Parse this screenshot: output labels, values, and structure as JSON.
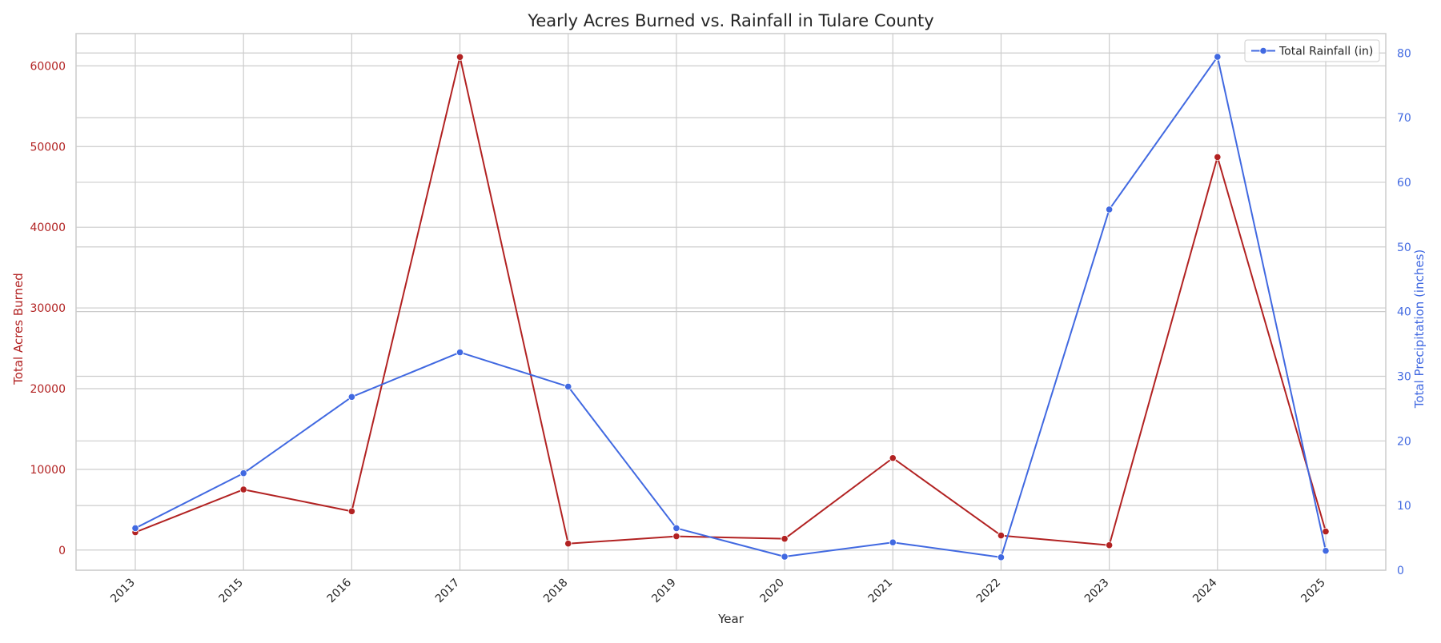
{
  "chart_data": {
    "type": "line",
    "title": "Yearly Acres Burned vs. Rainfall in Tulare County",
    "xlabel": "Year",
    "categories": [
      "2013",
      "2015",
      "2016",
      "2017",
      "2018",
      "2019",
      "2020",
      "2021",
      "2022",
      "2023",
      "2024",
      "2025"
    ],
    "y_left": {
      "label": "Total Acres Burned",
      "ylim": [
        -2500,
        64000
      ],
      "ticks": [
        0,
        10000,
        20000,
        30000,
        40000,
        50000,
        60000
      ],
      "color": "#b22222"
    },
    "y_right": {
      "label": "Total Precipitation (inches)",
      "ylim": [
        0,
        83
      ],
      "ticks": [
        0,
        10,
        20,
        30,
        40,
        50,
        60,
        70,
        80
      ],
      "color": "#4169e1"
    },
    "series": [
      {
        "axis": "left",
        "color": "#b22222",
        "values": [
          2200,
          7500,
          4800,
          61100,
          800,
          1700,
          1400,
          11400,
          1800,
          600,
          48700,
          2300
        ]
      },
      {
        "name": "Total Rainfall (in)",
        "axis": "right",
        "color": "#4169e1",
        "values": [
          6.5,
          15.0,
          26.8,
          33.7,
          28.4,
          6.5,
          2.1,
          4.3,
          2.0,
          55.8,
          79.4,
          3.0
        ]
      }
    ],
    "legend": {
      "position": "top-right",
      "entries": [
        "Total Rainfall (in)"
      ]
    },
    "grid": true
  }
}
